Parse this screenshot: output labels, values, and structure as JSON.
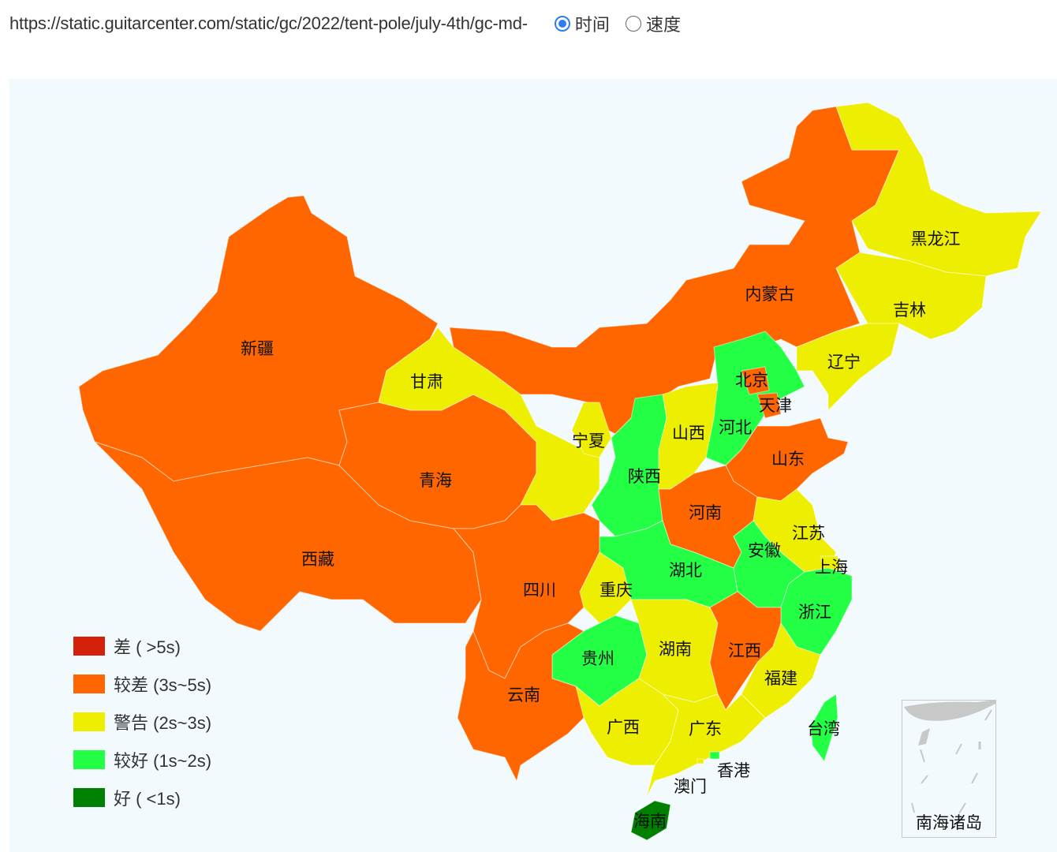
{
  "header": {
    "url_text": "https://static.guitarcenter.com/static/gc/2022/tent-pole/july-4th/gc-md-",
    "radios": [
      {
        "label": "时间",
        "checked": true
      },
      {
        "label": "速度",
        "checked": false
      }
    ]
  },
  "levels": {
    "poor": "#d4220a",
    "fair_poor": "#ff6600",
    "warning": "#eeee00",
    "fair_good": "#22ff44",
    "good": "#008000"
  },
  "legend": [
    {
      "label": "差 ( >5s)",
      "level": "poor"
    },
    {
      "label": "较差 (3s~5s)",
      "level": "fair_poor"
    },
    {
      "label": "警告 (2s~3s)",
      "level": "warning"
    },
    {
      "label": "较好 (1s~2s)",
      "level": "fair_good"
    },
    {
      "label": "好 ( <1s)",
      "level": "good"
    }
  ],
  "provinces": [
    {
      "name": "新疆",
      "level": "fair_poor"
    },
    {
      "name": "西藏",
      "level": "fair_poor"
    },
    {
      "name": "青海",
      "level": "fair_poor"
    },
    {
      "name": "甘肃",
      "level": "warning"
    },
    {
      "name": "内蒙古",
      "level": "fair_poor"
    },
    {
      "name": "黑龙江",
      "level": "warning"
    },
    {
      "name": "吉林",
      "level": "warning"
    },
    {
      "name": "辽宁",
      "level": "warning"
    },
    {
      "name": "河北",
      "level": "fair_good"
    },
    {
      "name": "北京",
      "level": "fair_poor"
    },
    {
      "name": "天津",
      "level": "fair_poor"
    },
    {
      "name": "山西",
      "level": "warning"
    },
    {
      "name": "陕西",
      "level": "fair_good"
    },
    {
      "name": "宁夏",
      "level": "warning"
    },
    {
      "name": "山东",
      "level": "fair_poor"
    },
    {
      "name": "河南",
      "level": "fair_poor"
    },
    {
      "name": "江苏",
      "level": "warning"
    },
    {
      "name": "安徽",
      "level": "fair_good"
    },
    {
      "name": "上海",
      "level": "warning"
    },
    {
      "name": "浙江",
      "level": "fair_good"
    },
    {
      "name": "湖北",
      "level": "fair_good"
    },
    {
      "name": "重庆",
      "level": "warning"
    },
    {
      "name": "四川",
      "level": "fair_poor"
    },
    {
      "name": "贵州",
      "level": "fair_good"
    },
    {
      "name": "湖南",
      "level": "warning"
    },
    {
      "name": "江西",
      "level": "fair_poor"
    },
    {
      "name": "福建",
      "level": "warning"
    },
    {
      "name": "云南",
      "level": "fair_poor"
    },
    {
      "name": "广西",
      "level": "warning"
    },
    {
      "name": "广东",
      "level": "warning"
    },
    {
      "name": "台湾",
      "level": "fair_good"
    },
    {
      "name": "香港",
      "level": "fair_good"
    },
    {
      "name": "澳门",
      "level": "warning"
    },
    {
      "name": "海南",
      "level": "good"
    }
  ],
  "inset": {
    "label": "南海诸岛"
  }
}
